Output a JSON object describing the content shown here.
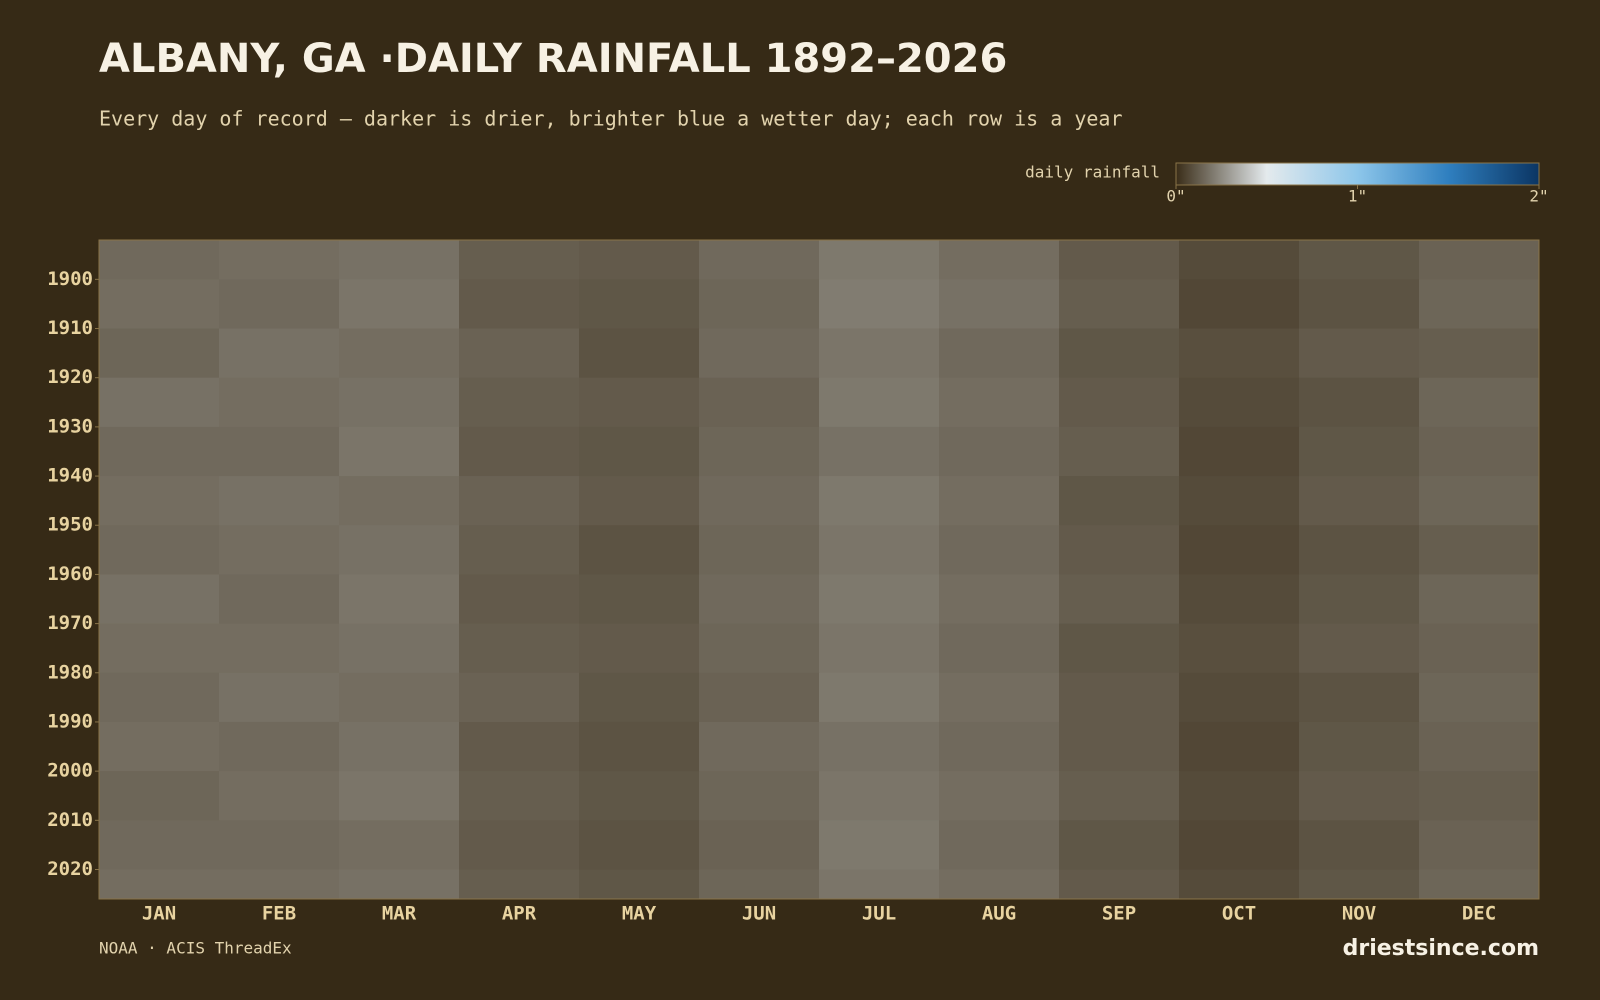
{
  "chart_data": {
    "type": "heatmap",
    "title": "ALBANY, GA ·DAILY RAINFALL 1892–2026",
    "subtitle": "Every day of record — darker is drier, brighter blue a wetter day; each row is a year",
    "source": "NOAA · ACIS ThreadEx",
    "brand": "driestsince.com",
    "categories": [
      "JAN",
      "FEB",
      "MAR",
      "APR",
      "MAY",
      "JUN",
      "JUL",
      "AUG",
      "SEP",
      "OCT",
      "NOV",
      "DEC"
    ],
    "y_bins": [
      1892,
      1900,
      1910,
      1920,
      1930,
      1940,
      1950,
      1960,
      1970,
      1980,
      1990,
      2000,
      2010,
      2020,
      2026
    ],
    "ylim": [
      1892,
      2026
    ],
    "yticks": [
      1900,
      1910,
      1920,
      1930,
      1940,
      1950,
      1960,
      1970,
      1980,
      1990,
      2000,
      2010,
      2020
    ],
    "values": [
      [
        0.16,
        0.17,
        0.18,
        0.13,
        0.12,
        0.16,
        0.2,
        0.17,
        0.12,
        0.08,
        0.11,
        0.14
      ],
      [
        0.17,
        0.16,
        0.19,
        0.12,
        0.11,
        0.15,
        0.21,
        0.18,
        0.13,
        0.07,
        0.1,
        0.15
      ],
      [
        0.15,
        0.18,
        0.17,
        0.14,
        0.1,
        0.16,
        0.19,
        0.16,
        0.11,
        0.09,
        0.12,
        0.13
      ],
      [
        0.18,
        0.17,
        0.18,
        0.13,
        0.12,
        0.14,
        0.2,
        0.17,
        0.12,
        0.08,
        0.1,
        0.15
      ],
      [
        0.16,
        0.16,
        0.19,
        0.12,
        0.11,
        0.15,
        0.18,
        0.16,
        0.13,
        0.07,
        0.11,
        0.14
      ],
      [
        0.17,
        0.18,
        0.17,
        0.14,
        0.12,
        0.16,
        0.2,
        0.17,
        0.11,
        0.08,
        0.12,
        0.15
      ],
      [
        0.16,
        0.17,
        0.18,
        0.13,
        0.1,
        0.15,
        0.19,
        0.16,
        0.12,
        0.07,
        0.1,
        0.13
      ],
      [
        0.18,
        0.16,
        0.19,
        0.12,
        0.11,
        0.16,
        0.2,
        0.17,
        0.13,
        0.08,
        0.11,
        0.15
      ],
      [
        0.17,
        0.17,
        0.18,
        0.13,
        0.12,
        0.15,
        0.19,
        0.16,
        0.11,
        0.09,
        0.12,
        0.14
      ],
      [
        0.16,
        0.18,
        0.17,
        0.14,
        0.11,
        0.14,
        0.2,
        0.17,
        0.12,
        0.08,
        0.1,
        0.15
      ],
      [
        0.17,
        0.16,
        0.18,
        0.12,
        0.1,
        0.16,
        0.18,
        0.16,
        0.12,
        0.07,
        0.11,
        0.14
      ],
      [
        0.15,
        0.17,
        0.19,
        0.13,
        0.11,
        0.15,
        0.19,
        0.17,
        0.13,
        0.08,
        0.12,
        0.13
      ],
      [
        0.16,
        0.16,
        0.17,
        0.12,
        0.1,
        0.14,
        0.2,
        0.16,
        0.11,
        0.07,
        0.1,
        0.14
      ],
      [
        0.17,
        0.17,
        0.18,
        0.13,
        0.11,
        0.15,
        0.19,
        0.17,
        0.12,
        0.08,
        0.11,
        0.15
      ]
    ],
    "colors": [
      "#3a2d18",
      "#e4eaed",
      "#8dc6ea",
      "#2f7fbf",
      "#0b3563"
    ],
    "colorbar": {
      "label": "daily rainfall",
      "lim": [
        0,
        2
      ],
      "ticks": [
        {
          "value": 0,
          "label": "0\""
        },
        {
          "value": 1,
          "label": "1\""
        },
        {
          "value": 2,
          "label": "2\""
        }
      ]
    }
  }
}
